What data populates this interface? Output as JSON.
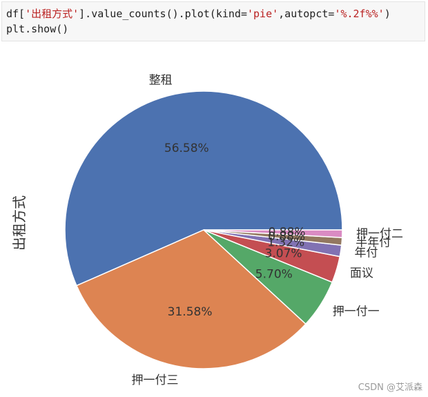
{
  "code": {
    "line1_prefix": "df[",
    "line1_string": "'出租方式'",
    "line1_mid": "].value_counts().plot(kind=",
    "line1_kind": "'pie'",
    "line1_sep": ",autopct=",
    "line1_fmt": "'%.2f%%'",
    "line1_suffix": ")",
    "line2": "plt.show()"
  },
  "chart_data": {
    "type": "pie",
    "ylabel": "出租方式",
    "slices": [
      {
        "label": "整租",
        "value": 56.58,
        "pct_label": "56.58%",
        "color": "#4c72b0"
      },
      {
        "label": "押一付三",
        "value": 31.58,
        "pct_label": "31.58%",
        "color": "#dd8452"
      },
      {
        "label": "押一付一",
        "value": 5.7,
        "pct_label": "5.70%",
        "color": "#55a868"
      },
      {
        "label": "面议",
        "value": 3.07,
        "pct_label": "3.07%",
        "color": "#c44e52"
      },
      {
        "label": "年付",
        "value": 1.32,
        "pct_label": "1.32%",
        "color": "#8172b3"
      },
      {
        "label": "半年付",
        "value": 0.88,
        "pct_label": "0.88%",
        "color": "#937860"
      },
      {
        "label": "押一付二",
        "value": 0.88,
        "pct_label": "0.88%",
        "color": "#da8bc3"
      }
    ]
  },
  "watermark": "CSDN @艾派森"
}
